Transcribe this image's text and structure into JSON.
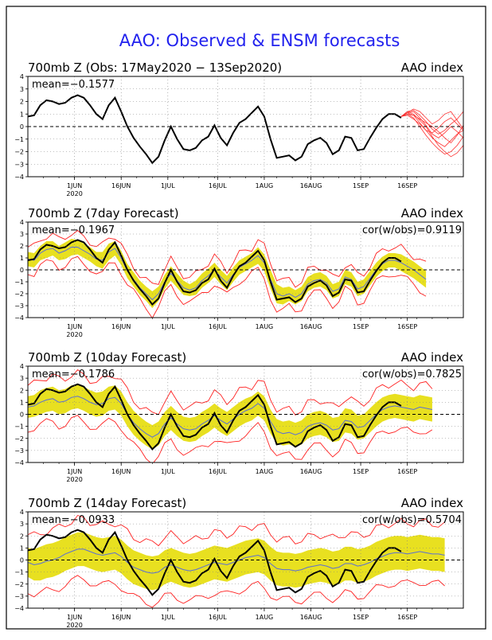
{
  "main_title": "AAO: Observed & ENSM forecasts",
  "colors": {
    "title": "#2222ee",
    "observed": "#000000",
    "ensemble_mean": "#5a6fd6",
    "spread_band": "#e8e020",
    "ensemble_extremes": "#ff2020",
    "forecast_members": "#ff3030",
    "zero_line": "#000000",
    "grid": "#808080"
  },
  "chart_data": [
    {
      "type": "line",
      "title": "700mb Z (Obs: 17May2020 − 13Sep2020)",
      "right_label": "AAO index",
      "mean_label": "mean=−0.1577",
      "corr_label": "",
      "ylim": [
        -4,
        4
      ],
      "yticks": [
        "4",
        "3",
        "2",
        "1",
        "0",
        "−1",
        "−2",
        "−3",
        "−4"
      ],
      "xticks": [
        "1JUN",
        "16JUN",
        "1JUL",
        "16JUL",
        "1AUG",
        "16AUG",
        "1SEP",
        "16SEP"
      ],
      "x_year_label": "2020",
      "grid": "dotted",
      "x_days": [
        0,
        2,
        4,
        6,
        8,
        10,
        12,
        14,
        16,
        18,
        20,
        22,
        24,
        26,
        28,
        30,
        32,
        34,
        36,
        38,
        40,
        42,
        44,
        46,
        48,
        50,
        52,
        54,
        56,
        58,
        60,
        62,
        64,
        66,
        68,
        70,
        72,
        74,
        76,
        78,
        80,
        82,
        84,
        86,
        88,
        90,
        92,
        94,
        96,
        98,
        100,
        102,
        104,
        106,
        108,
        110,
        112,
        114,
        116,
        118,
        120
      ],
      "observed": [
        0.8,
        0.9,
        1.7,
        2.1,
        2.0,
        1.8,
        1.9,
        2.3,
        2.5,
        2.3,
        1.7,
        1.0,
        0.6,
        1.7,
        2.3,
        1.2,
        0.0,
        -0.9,
        -1.6,
        -2.2,
        -2.9,
        -2.4,
        -1.1,
        0.0,
        -1.0,
        -1.8,
        -1.9,
        -1.7,
        -1.1,
        -0.8,
        0.1,
        -0.9,
        -1.5,
        -0.5,
        0.3,
        0.6,
        1.1,
        1.6,
        0.8,
        -1.0,
        -2.5,
        -2.4,
        -2.3,
        -2.7,
        -2.4,
        -1.4,
        -1.1,
        -0.9,
        -1.3,
        -2.2,
        -1.9,
        -0.8,
        -0.9,
        -1.9,
        -1.8,
        -0.9,
        -0.1,
        0.6,
        1.0,
        1.0,
        0.7
      ],
      "forecast_x_start": 120,
      "forecast_members": [
        [
          0.8,
          1.1,
          0.9,
          0.3,
          -0.3,
          -0.9,
          -1.3,
          -1.6,
          -1.1,
          -0.6,
          -0.3,
          0.3
        ],
        [
          0.8,
          1.2,
          1.3,
          0.9,
          0.4,
          -0.2,
          -0.6,
          -0.3,
          0.2,
          0.6,
          1.2,
          1.9
        ],
        [
          0.8,
          1.0,
          0.7,
          0.0,
          -0.7,
          -1.3,
          -1.8,
          -2.2,
          -2.0,
          -1.5,
          -0.8,
          -0.2
        ],
        [
          0.8,
          1.1,
          1.2,
          0.7,
          0.1,
          -0.6,
          -0.9,
          -0.5,
          0.0,
          -0.4,
          -0.9,
          -1.3
        ],
        [
          0.8,
          0.9,
          0.6,
          0.2,
          -0.3,
          -0.5,
          -0.1,
          0.4,
          0.7,
          0.2,
          -0.3,
          -0.6
        ],
        [
          0.8,
          1.2,
          1.0,
          0.5,
          0.0,
          -0.8,
          -1.5,
          -2.0,
          -2.4,
          -2.1,
          -1.5,
          -0.9
        ],
        [
          0.8,
          1.0,
          0.9,
          0.6,
          0.3,
          0.0,
          -0.4,
          -0.9,
          -1.3,
          -0.7,
          0.1,
          0.8
        ],
        [
          0.8,
          1.1,
          1.4,
          1.2,
          0.7,
          0.2,
          0.5,
          1.0,
          1.2,
          0.5,
          -0.2,
          -0.5
        ]
      ]
    },
    {
      "type": "line",
      "title": "700mb Z (7day Forecast)",
      "right_label": "AAO index",
      "mean_label": "mean=−0.1967",
      "corr_label": "cor(w/obs)=0.9119",
      "ylim": [
        -4,
        4
      ],
      "yticks": [
        "4",
        "3",
        "2",
        "1",
        "0",
        "−1",
        "−2",
        "−3",
        "−4"
      ],
      "xticks": [
        "1JUN",
        "16JUN",
        "1JUL",
        "16JUL",
        "1AUG",
        "16AUG",
        "1SEP",
        "16SEP"
      ],
      "x_year_label": "2020",
      "grid": "dotted",
      "forecast_x_end": 127,
      "ensemble_mean": [
        0.9,
        0.8,
        1.4,
        1.7,
        1.8,
        1.4,
        1.6,
        1.9,
        1.9,
        1.6,
        1.3,
        0.9,
        0.8,
        1.5,
        1.8,
        1.0,
        -0.1,
        -0.8,
        -1.5,
        -2.0,
        -2.5,
        -2.0,
        -1.0,
        -0.3,
        -0.9,
        -1.5,
        -1.7,
        -1.5,
        -0.9,
        -0.5,
        0.0,
        -0.6,
        -1.1,
        -0.4,
        0.2,
        0.5,
        0.8,
        1.2,
        0.6,
        -0.8,
        -2.0,
        -2.2,
        -2.0,
        -2.3,
        -2.0,
        -1.2,
        -0.9,
        -0.8,
        -1.1,
        -1.8,
        -1.6,
        -0.6,
        -0.8,
        -1.6,
        -1.4,
        -0.7,
        0.0,
        0.5,
        0.8,
        0.8,
        0.6,
        0.3,
        0.0,
        -0.4,
        -0.8
      ],
      "band_half_width": [
        0.6,
        0.6,
        0.6,
        0.7,
        0.6,
        0.6,
        0.7,
        0.7,
        0.6,
        0.6,
        0.6,
        0.6,
        0.7,
        0.7,
        0.6,
        0.6,
        0.6,
        0.6,
        0.6,
        0.6,
        0.7,
        0.6,
        0.6,
        0.6,
        0.6,
        0.6,
        0.5,
        0.6,
        0.6,
        0.6,
        0.6,
        0.6,
        0.6,
        0.6,
        0.6,
        0.6,
        0.6,
        0.7,
        0.7,
        0.8,
        0.8,
        0.7,
        0.6,
        0.6,
        0.6,
        0.6,
        0.6,
        0.6,
        0.6,
        0.6,
        0.6,
        0.6,
        0.6,
        0.6,
        0.6,
        0.6,
        0.6,
        0.6,
        0.6,
        0.6,
        0.7,
        0.7,
        0.7,
        0.7,
        0.7
      ],
      "extreme_half_width": [
        1.0,
        1.1,
        1.1,
        1.2,
        1.1,
        1.1,
        1.2,
        1.2,
        1.1,
        1.1,
        1.1,
        1.1,
        1.2,
        1.2,
        1.1,
        1.1,
        1.1,
        1.1,
        1.1,
        1.1,
        1.2,
        1.1,
        1.1,
        1.1,
        1.1,
        1.1,
        1.0,
        1.1,
        1.1,
        1.1,
        1.1,
        1.1,
        1.1,
        1.1,
        1.1,
        1.1,
        1.1,
        1.3,
        1.3,
        1.4,
        1.4,
        1.3,
        1.1,
        1.1,
        1.1,
        1.1,
        1.1,
        1.1,
        1.1,
        1.1,
        1.1,
        1.1,
        1.1,
        1.1,
        1.1,
        1.1,
        1.1,
        1.1,
        1.1,
        1.1,
        1.2,
        1.2,
        1.2,
        1.2,
        1.2
      ]
    },
    {
      "type": "line",
      "title": "700mb Z (10day Forecast)",
      "right_label": "AAO index",
      "mean_label": "mean=−0.1786",
      "corr_label": "cor(w/obs)=0.7825",
      "ylim": [
        -4,
        4
      ],
      "yticks": [
        "4",
        "3",
        "2",
        "1",
        "0",
        "−1",
        "−2",
        "−3",
        "−4"
      ],
      "xticks": [
        "1JUN",
        "16JUN",
        "1JUL",
        "16JUL",
        "1AUG",
        "16AUG",
        "1SEP",
        "16SEP"
      ],
      "x_year_label": "2020",
      "grid": "dotted",
      "forecast_x_end": 130,
      "ensemble_mean": [
        0.6,
        0.7,
        1.0,
        1.2,
        1.3,
        1.0,
        1.1,
        1.4,
        1.5,
        1.3,
        1.0,
        0.8,
        0.9,
        1.3,
        1.4,
        0.9,
        0.0,
        -0.7,
        -1.2,
        -1.6,
        -1.9,
        -1.6,
        -0.8,
        -0.3,
        -0.8,
        -1.2,
        -1.3,
        -1.2,
        -0.8,
        -0.5,
        -0.1,
        -0.5,
        -0.8,
        -0.4,
        0.0,
        0.3,
        0.5,
        0.9,
        0.5,
        -0.6,
        -1.4,
        -1.6,
        -1.5,
        -1.7,
        -1.5,
        -1.0,
        -0.8,
        -0.7,
        -0.9,
        -1.3,
        -1.2,
        -0.5,
        -0.6,
        -1.1,
        -1.0,
        -0.5,
        0.0,
        0.4,
        0.6,
        0.7,
        0.6,
        0.5,
        0.4,
        0.6,
        0.5,
        0.4
      ],
      "band_half_width": [
        0.9,
        0.9,
        1.0,
        1.0,
        1.0,
        1.0,
        1.0,
        1.0,
        1.0,
        1.0,
        1.0,
        1.0,
        1.0,
        1.0,
        1.0,
        1.0,
        1.0,
        1.0,
        1.0,
        1.0,
        1.0,
        1.0,
        1.0,
        1.0,
        1.0,
        1.0,
        1.0,
        1.0,
        1.0,
        1.0,
        1.0,
        1.0,
        1.0,
        1.0,
        1.0,
        1.0,
        1.0,
        1.0,
        1.0,
        1.0,
        1.0,
        1.0,
        1.0,
        1.0,
        1.0,
        1.0,
        1.0,
        1.0,
        1.0,
        1.0,
        1.0,
        1.0,
        1.0,
        1.0,
        1.0,
        1.0,
        1.0,
        1.0,
        1.0,
        1.0,
        1.0,
        1.0,
        1.0,
        1.0,
        1.0,
        1.0
      ],
      "extreme_half_width": [
        1.8,
        1.8,
        1.9,
        1.9,
        1.9,
        1.9,
        1.9,
        1.9,
        1.9,
        1.9,
        1.9,
        1.9,
        1.9,
        1.9,
        1.9,
        1.9,
        1.9,
        1.9,
        1.9,
        1.9,
        1.9,
        1.9,
        1.9,
        1.9,
        1.9,
        1.9,
        1.9,
        1.9,
        1.9,
        1.9,
        1.9,
        1.9,
        1.9,
        1.9,
        1.9,
        1.9,
        1.9,
        1.9,
        1.9,
        1.9,
        1.9,
        1.9,
        1.9,
        1.9,
        1.9,
        1.9,
        1.9,
        1.9,
        1.9,
        1.9,
        1.9,
        1.9,
        1.9,
        1.9,
        1.9,
        1.9,
        1.9,
        1.9,
        1.9,
        1.9,
        1.9,
        1.9,
        1.9,
        1.9,
        1.9,
        1.9
      ]
    },
    {
      "type": "line",
      "title": "700mb Z (14day Forecast)",
      "right_label": "AAO index",
      "mean_label": "mean=−0.0933",
      "corr_label": "cor(w/obs)=0.5704",
      "ylim": [
        -4,
        4
      ],
      "yticks": [
        "4",
        "3",
        "2",
        "1",
        "0",
        "−1",
        "−2",
        "−3",
        "−4"
      ],
      "xticks": [
        "1JUN",
        "16JUN",
        "1JUL",
        "16JUL",
        "1AUG",
        "16AUG",
        "1SEP",
        "16SEP"
      ],
      "x_year_label": "2020",
      "grid": "dotted",
      "forecast_x_end": 134,
      "ensemble_mean": [
        -0.2,
        -0.4,
        -0.3,
        -0.1,
        0.0,
        0.2,
        0.5,
        0.7,
        0.9,
        0.9,
        0.7,
        0.5,
        0.4,
        0.5,
        0.6,
        0.3,
        -0.2,
        -0.6,
        -0.8,
        -1.0,
        -1.1,
        -1.0,
        -0.6,
        -0.4,
        -0.6,
        -0.8,
        -0.9,
        -0.8,
        -0.6,
        -0.4,
        -0.2,
        -0.3,
        -0.4,
        -0.2,
        0.0,
        0.2,
        0.3,
        0.4,
        0.2,
        -0.3,
        -0.7,
        -0.8,
        -0.8,
        -0.9,
        -0.8,
        -0.6,
        -0.5,
        -0.4,
        -0.5,
        -0.7,
        -0.6,
        -0.3,
        -0.3,
        -0.5,
        -0.4,
        -0.2,
        0.1,
        0.3,
        0.5,
        0.6,
        0.6,
        0.5,
        0.6,
        0.7,
        0.6,
        0.5,
        0.5,
        0.4
      ],
      "band_half_width": [
        1.2,
        1.3,
        1.4,
        1.4,
        1.4,
        1.4,
        1.4,
        1.4,
        1.4,
        1.4,
        1.4,
        1.4,
        1.4,
        1.4,
        1.4,
        1.4,
        1.4,
        1.4,
        1.4,
        1.4,
        1.4,
        1.4,
        1.4,
        1.4,
        1.4,
        1.4,
        1.4,
        1.4,
        1.4,
        1.4,
        1.4,
        1.4,
        1.4,
        1.4,
        1.4,
        1.4,
        1.4,
        1.4,
        1.4,
        1.4,
        1.4,
        1.4,
        1.4,
        1.4,
        1.4,
        1.4,
        1.4,
        1.4,
        1.4,
        1.4,
        1.4,
        1.4,
        1.4,
        1.4,
        1.4,
        1.4,
        1.4,
        1.4,
        1.4,
        1.4,
        1.4,
        1.4,
        1.4,
        1.4,
        1.4,
        1.4,
        1.4,
        1.4
      ],
      "extreme_half_width": [
        2.3,
        2.4,
        2.5,
        2.5,
        2.5,
        2.5,
        2.5,
        2.5,
        2.5,
        2.5,
        2.5,
        2.5,
        2.5,
        2.5,
        2.5,
        2.5,
        2.5,
        2.5,
        2.5,
        2.5,
        2.5,
        2.5,
        2.5,
        2.5,
        2.5,
        2.5,
        2.5,
        2.5,
        2.5,
        2.5,
        2.5,
        2.5,
        2.5,
        2.5,
        2.5,
        2.5,
        2.5,
        2.5,
        2.5,
        2.5,
        2.5,
        2.5,
        2.5,
        2.5,
        2.5,
        2.5,
        2.5,
        2.5,
        2.5,
        2.5,
        2.5,
        2.5,
        2.5,
        2.5,
        2.5,
        2.5,
        2.5,
        2.5,
        2.5,
        2.5,
        2.5,
        2.5,
        2.5,
        2.5,
        2.5,
        2.5,
        2.5,
        2.5
      ]
    }
  ]
}
